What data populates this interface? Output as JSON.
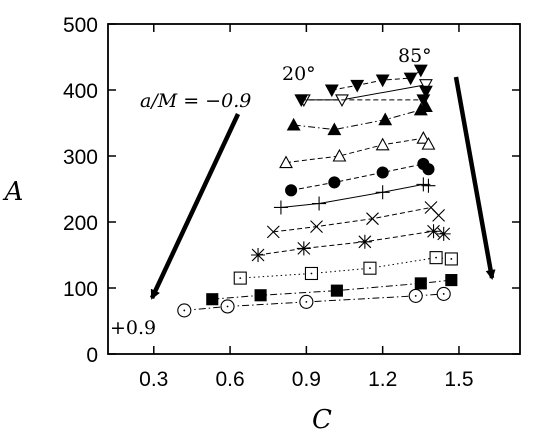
{
  "chart_data": {
    "type": "scatter",
    "title": "",
    "xlabel": "C",
    "ylabel": "A",
    "xlim": [
      0.12,
      1.74
    ],
    "ylim": [
      0,
      500
    ],
    "xticks": [
      "0.3",
      "0.6",
      "0.9",
      "1.2",
      "1.5"
    ],
    "yticks": [
      "0",
      "100",
      "200",
      "300",
      "400",
      "500"
    ],
    "grid": false,
    "legend": "none",
    "annotations": {
      "angle_low": "20°",
      "angle_high": "85°",
      "spin_high_label": "a/M = −0.9",
      "spin_low_label": "+0.9"
    },
    "series": [
      {
        "marker": "filled-down-triangle",
        "line": "dashed",
        "x": [
          1.0,
          1.1,
          1.2,
          1.31,
          1.35
        ],
        "y": [
          400,
          407,
          415,
          418,
          430
        ]
      },
      {
        "marker": "open-down-triangle",
        "line": "solid",
        "x": [
          0.89,
          1.04,
          1.37
        ],
        "y": [
          385,
          385,
          408
        ]
      },
      {
        "marker": "filled-down-triangle",
        "line": "dashed",
        "x": [
          0.88,
          1.36,
          1.37
        ],
        "y": [
          385,
          385,
          398
        ]
      },
      {
        "marker": "filled-up-triangle",
        "line": "dashdot",
        "x": [
          0.85,
          1.01,
          1.21,
          1.35,
          1.37
        ],
        "y": [
          347,
          340,
          355,
          370,
          375
        ]
      },
      {
        "marker": "open-up-triangle",
        "line": "dashed",
        "x": [
          0.82,
          1.03,
          1.2,
          1.36,
          1.38
        ],
        "y": [
          290,
          300,
          317,
          327,
          318
        ]
      },
      {
        "marker": "filled-circle",
        "line": "dashed",
        "x": [
          0.84,
          1.01,
          1.2,
          1.36,
          1.38
        ],
        "y": [
          248,
          260,
          275,
          288,
          280
        ]
      },
      {
        "marker": "plus",
        "line": "solid",
        "x": [
          0.8,
          0.95,
          1.2,
          1.36,
          1.38
        ],
        "y": [
          222,
          228,
          245,
          257,
          255
        ]
      },
      {
        "marker": "cross",
        "line": "dashed",
        "x": [
          0.77,
          0.94,
          1.16,
          1.39,
          1.42
        ],
        "y": [
          185,
          193,
          205,
          222,
          210
        ]
      },
      {
        "marker": "asterisk",
        "line": "dashed",
        "x": [
          0.71,
          0.89,
          1.13,
          1.4,
          1.44
        ],
        "y": [
          150,
          160,
          170,
          186,
          182
        ]
      },
      {
        "marker": "open-square",
        "line": "dotted",
        "x": [
          0.64,
          0.92,
          1.15,
          1.41,
          1.47
        ],
        "y": [
          115,
          122,
          130,
          146,
          144
        ]
      },
      {
        "marker": "filled-square",
        "line": "dashdot",
        "x": [
          0.53,
          0.72,
          1.02,
          1.35,
          1.47
        ],
        "y": [
          83,
          89,
          96,
          107,
          112
        ]
      },
      {
        "marker": "open-circle",
        "line": "dashdot",
        "x": [
          0.42,
          0.59,
          0.9,
          1.33,
          1.44
        ],
        "y": [
          66,
          72,
          79,
          88,
          91
        ]
      }
    ]
  }
}
